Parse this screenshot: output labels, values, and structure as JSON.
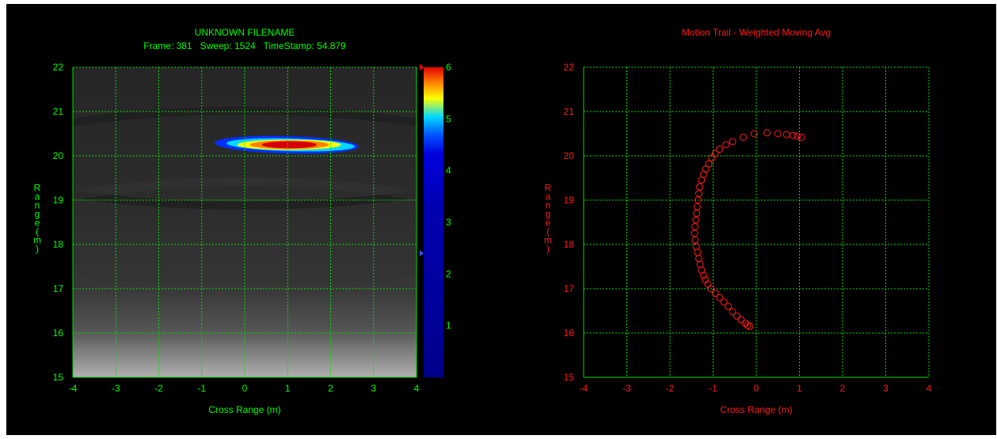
{
  "colors": {
    "background": "#000000",
    "grid": "#00dd00",
    "left_text": "#00ff00",
    "right_text": "#ff1a1a",
    "trail_marker": "#ff1a1a"
  },
  "chart_data": [
    {
      "type": "heatmap",
      "title": "UNKNOWN FILENAME",
      "subtitle": "Frame: 381   Sweep: 1524   TimeStamp: 54.879",
      "xlabel": "Cross Range (m)",
      "ylabel": "Range (m)",
      "xlim": [
        -4,
        4
      ],
      "ylim": [
        15,
        22
      ],
      "x_ticks": [
        -4,
        -3,
        -2,
        -1,
        0,
        1,
        2,
        3,
        4
      ],
      "y_ticks": [
        15,
        16,
        17,
        18,
        19,
        20,
        21,
        22
      ],
      "grid": true,
      "hotspot": {
        "x_min": -0.7,
        "x_max": 2.65,
        "y_center": 20.25,
        "peak_x": 1.0,
        "peak_value": 6
      },
      "colorbar": {
        "min": 0,
        "max": 6,
        "ticks": [
          1,
          2,
          3,
          4,
          5,
          6
        ],
        "stops": [
          "#00008b",
          "#0000b0",
          "#0000dd",
          "#0050ff",
          "#00d8ff",
          "#ffff00",
          "#ff8000",
          "#e00000"
        ],
        "marker_value": 2.4
      }
    },
    {
      "type": "scatter",
      "title": "Motion Trail - Weighted Moving Avg",
      "xlabel": "Cross Range (m)",
      "ylabel": "Range (m)",
      "xlim": [
        -4,
        4
      ],
      "ylim": [
        15,
        22
      ],
      "x_ticks": [
        -4,
        -3,
        -2,
        -1,
        0,
        1,
        2,
        3,
        4
      ],
      "y_ticks": [
        15,
        16,
        17,
        18,
        19,
        20,
        21,
        22
      ],
      "grid": true,
      "marker": "circle-open",
      "points": [
        [
          -0.15,
          16.15
        ],
        [
          -0.2,
          16.17
        ],
        [
          -0.25,
          16.22
        ],
        [
          -0.35,
          16.3
        ],
        [
          -0.45,
          16.38
        ],
        [
          -0.55,
          16.48
        ],
        [
          -0.65,
          16.6
        ],
        [
          -0.75,
          16.7
        ],
        [
          -0.85,
          16.8
        ],
        [
          -0.95,
          16.9
        ],
        [
          -1.05,
          17.0
        ],
        [
          -1.12,
          17.1
        ],
        [
          -1.18,
          17.2
        ],
        [
          -1.22,
          17.3
        ],
        [
          -1.27,
          17.42
        ],
        [
          -1.3,
          17.55
        ],
        [
          -1.33,
          17.68
        ],
        [
          -1.36,
          17.82
        ],
        [
          -1.39,
          17.95
        ],
        [
          -1.42,
          18.1
        ],
        [
          -1.43,
          18.25
        ],
        [
          -1.42,
          18.4
        ],
        [
          -1.4,
          18.55
        ],
        [
          -1.38,
          18.7
        ],
        [
          -1.37,
          18.85
        ],
        [
          -1.35,
          19.0
        ],
        [
          -1.33,
          19.15
        ],
        [
          -1.31,
          19.3
        ],
        [
          -1.27,
          19.45
        ],
        [
          -1.22,
          19.58
        ],
        [
          -1.17,
          19.7
        ],
        [
          -1.1,
          19.82
        ],
        [
          -1.03,
          19.95
        ],
        [
          -0.95,
          20.05
        ],
        [
          -0.85,
          20.15
        ],
        [
          -0.7,
          20.25
        ],
        [
          -0.55,
          20.32
        ],
        [
          -0.3,
          20.42
        ],
        [
          -0.05,
          20.5
        ],
        [
          0.25,
          20.52
        ],
        [
          0.5,
          20.5
        ],
        [
          0.7,
          20.48
        ],
        [
          0.85,
          20.46
        ],
        [
          0.95,
          20.44
        ],
        [
          1.05,
          20.42
        ]
      ]
    }
  ]
}
